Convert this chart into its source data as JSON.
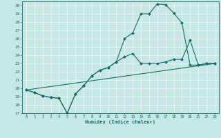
{
  "title": "",
  "xlabel": "Humidex (Indice chaleur)",
  "xlim": [
    -0.5,
    23.5
  ],
  "ylim": [
    17,
    30.5
  ],
  "yticks": [
    17,
    18,
    19,
    20,
    21,
    22,
    23,
    24,
    25,
    26,
    27,
    28,
    29,
    30
  ],
  "xticks": [
    0,
    1,
    2,
    3,
    4,
    5,
    6,
    7,
    8,
    9,
    10,
    11,
    12,
    13,
    14,
    15,
    16,
    17,
    18,
    19,
    20,
    21,
    22,
    23
  ],
  "bg_color": "#c5e8e5",
  "line_color": "#1a6b6b",
  "line1_x": [
    0,
    1,
    2,
    3,
    4,
    5,
    6,
    7,
    8,
    9,
    10,
    11,
    12,
    13,
    14,
    15,
    16,
    17,
    18,
    19,
    20,
    21,
    22,
    23
  ],
  "line1_y": [
    19.8,
    19.5,
    19.1,
    18.9,
    18.8,
    17.0,
    19.3,
    20.3,
    21.5,
    22.2,
    22.5,
    23.2,
    26.0,
    26.7,
    29.0,
    29.0,
    30.2,
    30.1,
    29.1,
    27.9,
    22.8,
    22.8,
    23.0,
    23.0
  ],
  "line2_x": [
    0,
    1,
    2,
    3,
    4,
    5,
    6,
    7,
    8,
    9,
    10,
    11,
    12,
    13,
    14,
    15,
    16,
    17,
    18,
    19,
    20,
    21,
    22,
    23
  ],
  "line2_y": [
    19.8,
    19.5,
    19.1,
    18.9,
    18.8,
    17.0,
    19.3,
    20.3,
    21.5,
    22.2,
    22.5,
    23.2,
    23.8,
    24.2,
    23.0,
    23.0,
    23.0,
    23.2,
    23.5,
    23.5,
    25.8,
    22.8,
    23.0,
    23.0
  ],
  "line3_x": [
    0,
    23
  ],
  "line3_y": [
    19.8,
    23.0
  ],
  "grid_color": "#ffffff",
  "marker": "D",
  "markersize": 2.0,
  "linewidth": 0.8
}
